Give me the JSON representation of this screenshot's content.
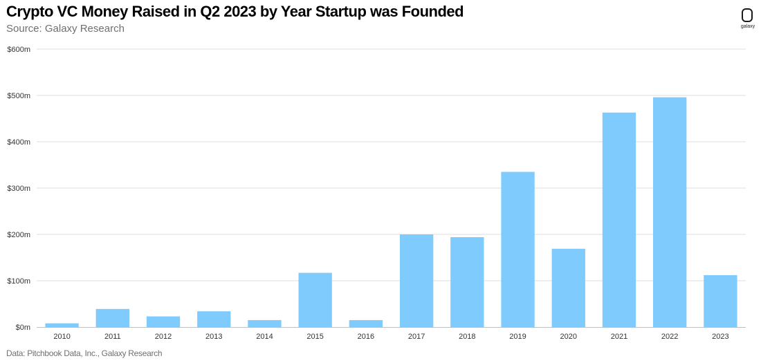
{
  "header": {
    "title": "Crypto VC Money Raised in Q2 2023 by Year Startup was Founded",
    "subtitle": "Source: Galaxy Research"
  },
  "footer": {
    "note": "Data: Pitchbook Data, Inc., Galaxy Research"
  },
  "logo": {
    "icon": "galaxy-logo-icon",
    "wordmark": "galaxy"
  },
  "colors": {
    "bar": "#7fcbfd",
    "grid": "#dcdcdc",
    "axis": "#bfbfbf"
  },
  "chart_data": {
    "type": "bar",
    "title": "Crypto VC Money Raised in Q2 2023 by Year Startup was Founded",
    "xlabel": "",
    "ylabel": "",
    "categories": [
      "2010",
      "2011",
      "2012",
      "2013",
      "2014",
      "2015",
      "2016",
      "2017",
      "2018",
      "2019",
      "2020",
      "2021",
      "2022",
      "2023"
    ],
    "values": [
      8,
      39,
      23,
      34,
      15,
      117,
      15,
      200,
      194,
      335,
      169,
      463,
      496,
      112
    ],
    "ylim": [
      0,
      600
    ],
    "yticks": [
      0,
      100,
      200,
      300,
      400,
      500,
      600
    ],
    "ytick_labels": [
      "$0m",
      "$100m",
      "$200m",
      "$300m",
      "$400m",
      "$500m",
      "$600m"
    ],
    "grid": true,
    "legend": "none",
    "unit": "$m"
  }
}
